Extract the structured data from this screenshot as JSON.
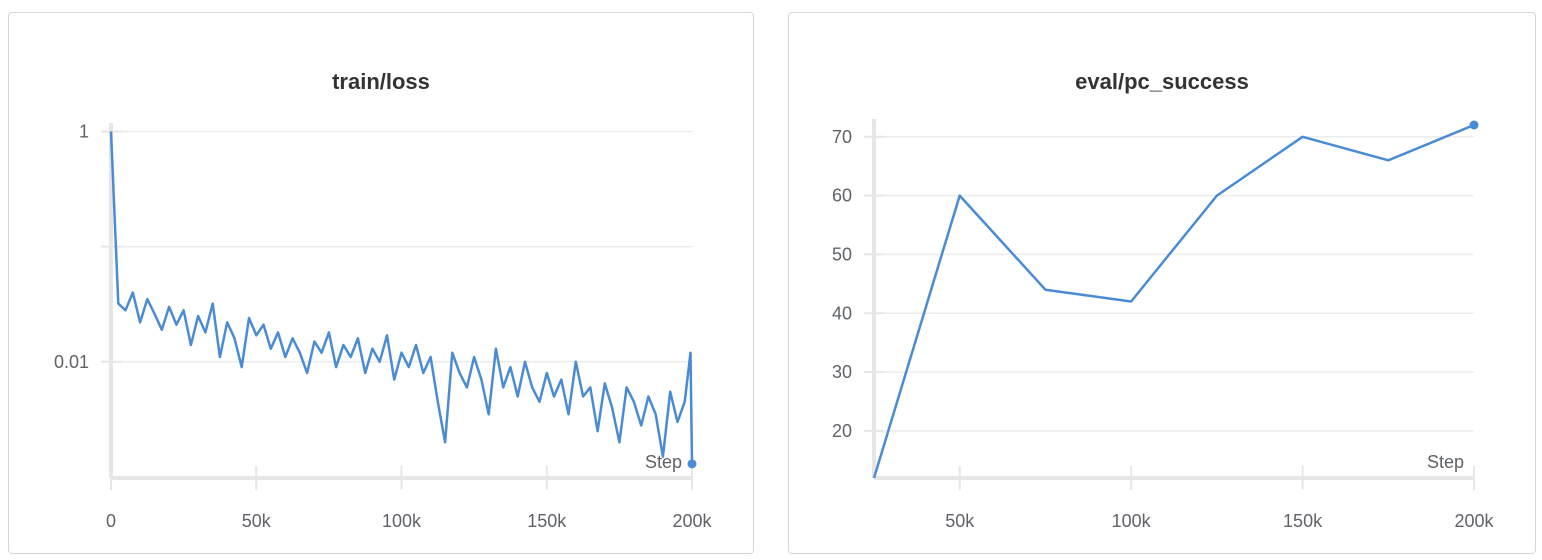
{
  "chart_data": [
    {
      "type": "line",
      "title": "train/loss",
      "xlabel": "Step",
      "ylabel": "",
      "yscale": "log",
      "xlim": [
        0,
        200000
      ],
      "ylim": [
        0.00098,
        1.05
      ],
      "xticks": [
        0,
        50000,
        100000,
        150000,
        200000
      ],
      "xtick_labels": [
        "0",
        "50k",
        "100k",
        "150k",
        "200k"
      ],
      "yticks": [
        1,
        0.1,
        0.01
      ],
      "ytick_labels": [
        "1",
        "",
        "0.01"
      ],
      "grid": true,
      "color": "#4a8bd6",
      "x": [
        0,
        2500,
        5000,
        7500,
        10000,
        12500,
        15000,
        17500,
        20000,
        22500,
        25000,
        27500,
        30000,
        32500,
        35000,
        37500,
        40000,
        42500,
        45000,
        47500,
        50000,
        52500,
        55000,
        57500,
        60000,
        62500,
        65000,
        67500,
        70000,
        72500,
        75000,
        77500,
        80000,
        82500,
        85000,
        87500,
        90000,
        92500,
        95000,
        97500,
        100000,
        102500,
        105000,
        107500,
        110000,
        112500,
        115000,
        117500,
        120000,
        122500,
        125000,
        127500,
        130000,
        132500,
        135000,
        137500,
        140000,
        142500,
        145000,
        147500,
        150000,
        152500,
        155000,
        157500,
        160000,
        162500,
        165000,
        167500,
        170000,
        172500,
        175000,
        177500,
        180000,
        182500,
        185000,
        187500,
        190000,
        192500,
        195000,
        197500,
        199500,
        200000
      ],
      "y": [
        1.0,
        0.032,
        0.028,
        0.04,
        0.022,
        0.035,
        0.026,
        0.019,
        0.03,
        0.021,
        0.028,
        0.014,
        0.025,
        0.018,
        0.032,
        0.011,
        0.022,
        0.016,
        0.009,
        0.024,
        0.017,
        0.021,
        0.013,
        0.018,
        0.011,
        0.016,
        0.012,
        0.008,
        0.015,
        0.012,
        0.018,
        0.009,
        0.014,
        0.011,
        0.016,
        0.008,
        0.013,
        0.01,
        0.017,
        0.007,
        0.012,
        0.009,
        0.014,
        0.008,
        0.011,
        0.0045,
        0.002,
        0.012,
        0.008,
        0.006,
        0.011,
        0.007,
        0.0035,
        0.013,
        0.006,
        0.009,
        0.005,
        0.01,
        0.006,
        0.0045,
        0.008,
        0.005,
        0.007,
        0.0035,
        0.01,
        0.005,
        0.006,
        0.0025,
        0.0065,
        0.004,
        0.002,
        0.006,
        0.0045,
        0.0028,
        0.005,
        0.0035,
        0.0015,
        0.0055,
        0.003,
        0.0045,
        0.012,
        0.0013
      ]
    },
    {
      "type": "line",
      "title": "eval/pc_success",
      "xlabel": "Step",
      "ylabel": "",
      "xlim": [
        25000,
        200000
      ],
      "ylim": [
        12,
        72
      ],
      "xticks": [
        50000,
        100000,
        150000,
        200000
      ],
      "xtick_labels": [
        "50k",
        "100k",
        "150k",
        "200k"
      ],
      "yticks": [
        20,
        30,
        40,
        50,
        60,
        70
      ],
      "ytick_labels": [
        "20",
        "30",
        "40",
        "50",
        "60",
        "70"
      ],
      "grid": true,
      "color": "#4a8bd6",
      "x": [
        25000,
        50000,
        75000,
        100000,
        125000,
        150000,
        175000,
        200000
      ],
      "y": [
        12,
        60,
        44,
        42,
        60,
        70,
        66,
        72
      ]
    }
  ]
}
